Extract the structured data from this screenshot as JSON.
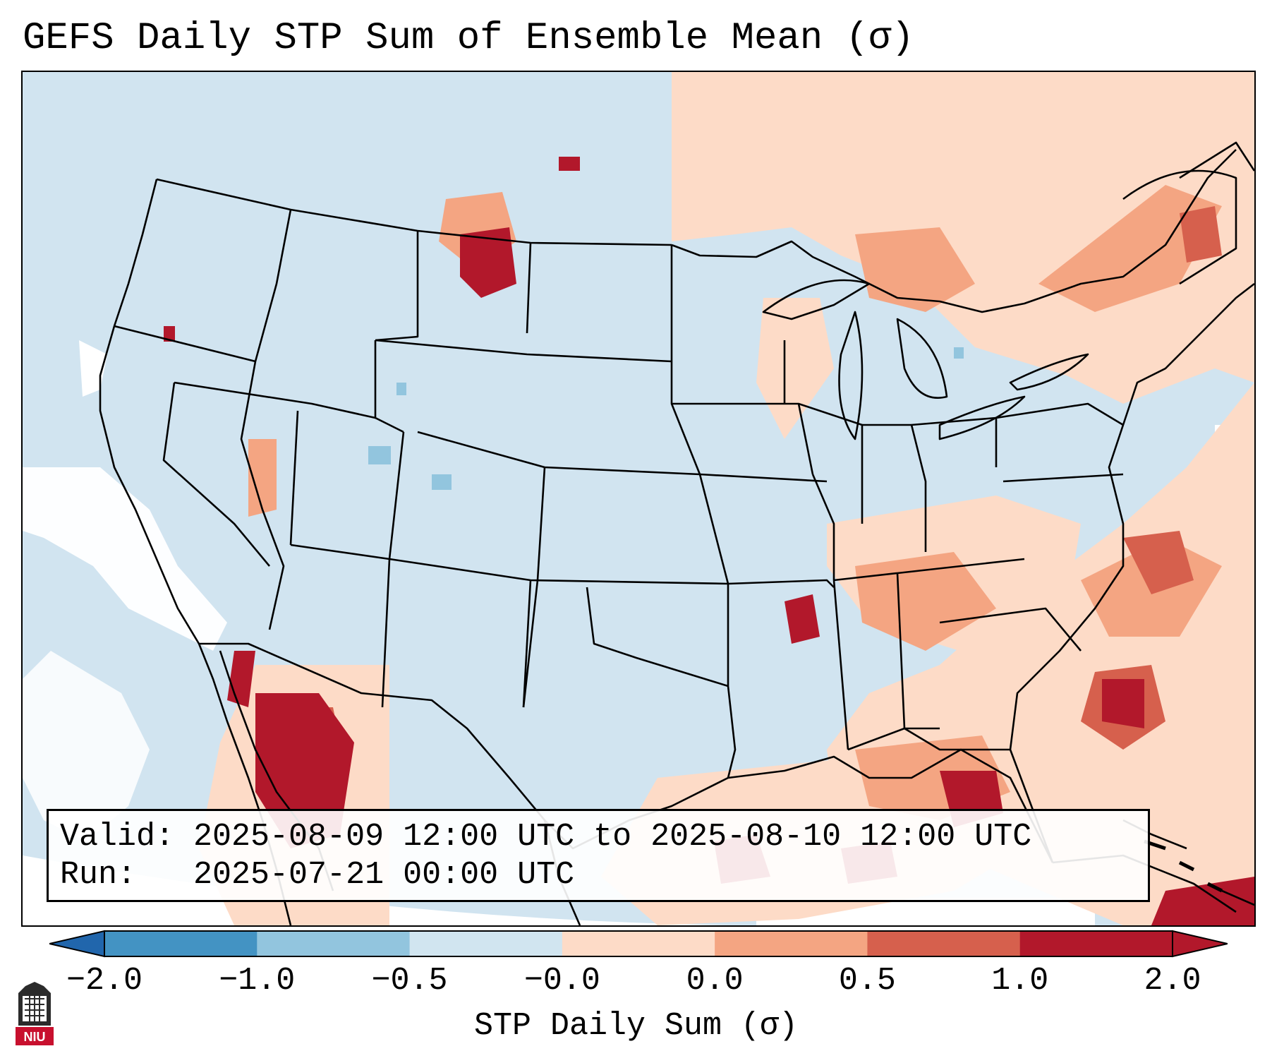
{
  "figure": {
    "title": "GEFS Daily STP Sum of Ensemble Mean (σ)"
  },
  "info_box": {
    "valid_text": "Valid: 2025-08-09 12:00 UTC to 2025-08-10 12:00 UTC",
    "run_text": "Run:   2025-07-21 00:00 UTC"
  },
  "colorbar": {
    "label": "STP Daily Sum (σ)",
    "tick_labels": [
      "−2.0",
      "−1.0",
      "−0.5",
      "−0.0",
      "0.0",
      "0.5",
      "1.0",
      "2.0"
    ],
    "colors": [
      "#4393c3",
      "#92c5de",
      "#d1e5f0",
      "#fddbc7",
      "#f4a582",
      "#d6604d",
      "#b2182b"
    ],
    "under_color": "#2166ac",
    "over_color": "#b2182b"
  },
  "map": {
    "background_color": "#d1e4f0",
    "nodata_color": "#ffffff",
    "features": [
      "CONUS state boundaries",
      "coastlines",
      "Great Lakes",
      "Mexico",
      "Canada",
      "Cuba",
      "Bahamas"
    ]
  },
  "logo": {
    "text": "NIU",
    "accent_color": "#c8102e"
  }
}
